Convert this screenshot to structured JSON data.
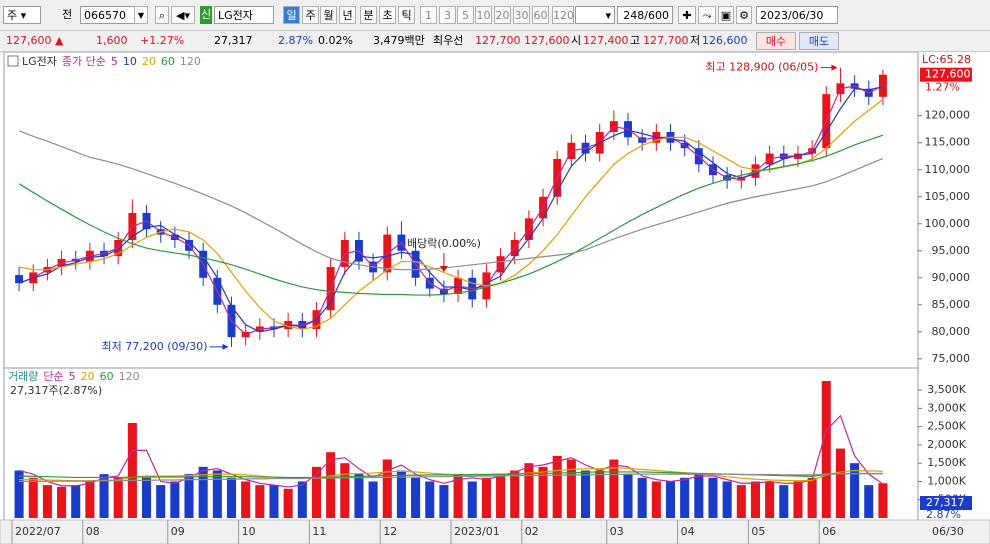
{
  "toolbar": {
    "market": "주",
    "prev": "전",
    "code": "066570",
    "new_badge": "신",
    "name": "LG전자",
    "periods": [
      "일",
      "주",
      "월",
      "년",
      "분",
      "초",
      "틱"
    ],
    "minutes": [
      "1",
      "3",
      "5",
      "10",
      "20",
      "30",
      "60",
      "120"
    ],
    "count": "248",
    "max_count": "/600",
    "date": "2023/06/30"
  },
  "quote": {
    "price": "127,600 ▲",
    "change": "1,600",
    "change_rate": "+1.27%",
    "volume": "27,317",
    "turnover": "2.87%",
    "ratio": "0.02%",
    "amount": "3,479백만",
    "best_label": "최우선",
    "ask": "127,700",
    "bid": "127,600",
    "open_label": "시",
    "open": "127,400",
    "high_label": "고",
    "high": "127,700",
    "low_label": "저",
    "low": "126,600",
    "buy": "매수",
    "sell": "매도"
  },
  "chart_data": {
    "type": "candlestick",
    "title": "LG전자",
    "ma_label": "종가 단순",
    "up_color": "#e8141b",
    "down_color": "#1a3cc8",
    "xlim": [
      -0.5,
      61.5
    ],
    "xticks": [
      {
        "value": 0,
        "label": "2022/07"
      },
      {
        "value": 5,
        "label": "08"
      },
      {
        "value": 11,
        "label": "09"
      },
      {
        "value": 16,
        "label": "10"
      },
      {
        "value": 21,
        "label": "11"
      },
      {
        "value": 26,
        "label": "12"
      },
      {
        "value": 31,
        "label": "2023/01"
      },
      {
        "value": 36,
        "label": "02"
      },
      {
        "value": 42,
        "label": "03"
      },
      {
        "value": 47,
        "label": "04"
      },
      {
        "value": 52,
        "label": "05"
      },
      {
        "value": 57,
        "label": "06"
      }
    ],
    "last_label": "06/30",
    "open": [
      90500,
      89000,
      91000,
      92000,
      93500,
      93000,
      95000,
      94000,
      97000,
      102000,
      99000,
      98000,
      97000,
      95000,
      90000,
      85000,
      79000,
      80000,
      81000,
      80500,
      82000,
      80500,
      84000,
      92000,
      97000,
      93000,
      91000,
      98000,
      95000,
      90000,
      88000,
      87000,
      90000,
      86000,
      91000,
      94000,
      97000,
      101000,
      105000,
      112000,
      115000,
      113000,
      117000,
      119000,
      116000,
      115000,
      117000,
      115000,
      114000,
      111000,
      109000,
      108000,
      108500,
      111000,
      113000,
      112000,
      113000,
      114000,
      124000,
      126000,
      125000,
      123500
    ],
    "high": [
      92000,
      92500,
      93500,
      95000,
      95000,
      96500,
      96500,
      98500,
      104500,
      103500,
      100500,
      99500,
      98500,
      96500,
      91500,
      86500,
      81500,
      82500,
      82500,
      83500,
      83500,
      85500,
      93500,
      98500,
      98500,
      94500,
      99500,
      100500,
      96500,
      91500,
      89500,
      91500,
      91500,
      92500,
      95500,
      98500,
      102500,
      106500,
      113500,
      116500,
      116500,
      118500,
      121000,
      120500,
      117500,
      118500,
      118500,
      116500,
      115500,
      112500,
      110500,
      110000,
      112500,
      114500,
      114500,
      114500,
      115500,
      125500,
      128900,
      127500,
      126500,
      128500
    ],
    "low": [
      87500,
      87500,
      89500,
      90500,
      91500,
      91500,
      92500,
      92500,
      95500,
      97500,
      96500,
      95500,
      93500,
      88500,
      83500,
      77200,
      77500,
      78500,
      79000,
      79000,
      79000,
      79000,
      82500,
      90500,
      91500,
      89500,
      89500,
      93500,
      88500,
      86500,
      85500,
      85500,
      84500,
      84500,
      89500,
      92500,
      95500,
      99500,
      103500,
      110500,
      111500,
      111500,
      115500,
      114500,
      113500,
      113500,
      113500,
      112500,
      109500,
      107500,
      106500,
      106500,
      107000,
      109500,
      110500,
      110500,
      111500,
      112500,
      122500,
      123500,
      122000,
      122000
    ],
    "close": [
      89000,
      91000,
      92000,
      93500,
      93000,
      95000,
      94000,
      97000,
      102000,
      99000,
      98000,
      97000,
      95000,
      90000,
      85000,
      79000,
      80000,
      81000,
      80500,
      82000,
      80500,
      84000,
      92000,
      97000,
      93000,
      91000,
      98000,
      95000,
      90000,
      88000,
      87000,
      90000,
      86000,
      91000,
      94000,
      97000,
      101000,
      105000,
      112000,
      115000,
      113000,
      117000,
      119000,
      116000,
      115000,
      117000,
      115000,
      114000,
      111000,
      109000,
      108000,
      108500,
      111000,
      113000,
      112000,
      113000,
      114000,
      124000,
      126000,
      125000,
      123500,
      127600
    ],
    "ma": [
      {
        "name": "5",
        "color": "#c0289a",
        "values": [
          89000,
          90000,
          91500,
          92750,
          93250,
          94000,
          94500,
          95500,
          99500,
          100500,
          98500,
          97500,
          96000,
          92500,
          87500,
          82000,
          79500,
          80500,
          80750,
          81250,
          81250,
          82250,
          88000,
          94500,
          95000,
          92000,
          94500,
          96500,
          92500,
          89000,
          87500,
          88500,
          88000,
          88500,
          92500,
          95500,
          99000,
          103000,
          108500,
          113500,
          114000,
          115000,
          118000,
          117500,
          115500,
          116000,
          116000,
          114500,
          112500,
          110000,
          108500,
          108250,
          109750,
          112000,
          112500,
          112500,
          113500,
          119000,
          125000,
          125500,
          124250,
          125550
        ]
      },
      {
        "name": "10",
        "color": "#2a36c8",
        "values": [
          89000,
          90000,
          90700,
          92200,
          92800,
          93800,
          94000,
          95300,
          97700,
          99300,
          99700,
          98000,
          96700,
          94000,
          90000,
          84700,
          81300,
          80000,
          80500,
          81200,
          81000,
          82200,
          85500,
          91000,
          94000,
          93700,
          94000,
          94700,
          94300,
          91000,
          88300,
          88300,
          87700,
          89000,
          90300,
          94000,
          97300,
          101000,
          106000,
          110700,
          113300,
          115000,
          116300,
          117300,
          116700,
          116000,
          115700,
          115300,
          113300,
          111300,
          109300,
          108500,
          109200,
          110800,
          112000,
          112700,
          113000,
          117000,
          121300,
          125000,
          124800,
          125400
        ]
      },
      {
        "name": "20",
        "color": "#e8a000",
        "values": [
          92000,
          91500,
          91500,
          92000,
          92500,
          93000,
          93500,
          94500,
          96000,
          97500,
          98500,
          99000,
          98500,
          97000,
          94500,
          91000,
          87500,
          84500,
          82000,
          81000,
          80500,
          81000,
          82500,
          85000,
          87500,
          89500,
          91500,
          93000,
          93000,
          92000,
          91000,
          90000,
          89000,
          88500,
          89000,
          90500,
          92500,
          95000,
          98000,
          101500,
          105000,
          108000,
          111000,
          113000,
          114500,
          115500,
          116000,
          116000,
          115000,
          113500,
          112000,
          110500,
          110000,
          110000,
          110500,
          111000,
          112000,
          114000,
          116500,
          119000,
          121000,
          123000
        ]
      },
      {
        "name": "60",
        "color": "#2a9a3a",
        "values": [
          107400,
          105800,
          104200,
          102700,
          101200,
          99800,
          98500,
          97300,
          96300,
          95500,
          95000,
          94600,
          94200,
          93700,
          93100,
          92400,
          91600,
          90700,
          89800,
          89000,
          88300,
          87800,
          87500,
          87300,
          87100,
          87000,
          86900,
          86900,
          86800,
          86800,
          86900,
          87200,
          87600,
          88300,
          89000,
          89800,
          90700,
          91800,
          93000,
          94300,
          95800,
          97300,
          98800,
          100300,
          101700,
          103000,
          104300,
          105500,
          106600,
          107500,
          108300,
          109000,
          109600,
          110100,
          110600,
          111100,
          111700,
          112500,
          113500,
          114600,
          115500,
          116400
        ]
      },
      {
        "name": "120",
        "color": "#8c8c8c",
        "values": [
          117200,
          116200,
          115300,
          114300,
          113300,
          112300,
          111700,
          111000,
          110200,
          109300,
          108400,
          107500,
          106500,
          105500,
          104400,
          103300,
          102000,
          100600,
          99200,
          97700,
          96200,
          94800,
          93600,
          92900,
          92400,
          92000,
          91700,
          91500,
          91500,
          91600,
          91800,
          92100,
          92400,
          92700,
          93000,
          93300,
          93600,
          93900,
          94200,
          94500,
          95200,
          96200,
          97200,
          98100,
          99000,
          99800,
          100600,
          101400,
          102200,
          103000,
          103800,
          104400,
          105000,
          105500,
          106000,
          106500,
          107000,
          107800,
          108800,
          109900,
          111000,
          112100
        ]
      }
    ],
    "ylim": [
      73300,
      131800
    ],
    "yticks": [
      {
        "value": 75000,
        "label": "75,000"
      },
      {
        "value": 80000,
        "label": "80,000"
      },
      {
        "value": 85000,
        "label": "85,000"
      },
      {
        "value": 90000,
        "label": "90,000"
      },
      {
        "value": 95000,
        "label": "95,000"
      },
      {
        "value": 100000,
        "label": "100,000"
      },
      {
        "value": 105000,
        "label": "105,000"
      },
      {
        "value": 110000,
        "label": "110,000"
      },
      {
        "value": 115000,
        "label": "115,000"
      },
      {
        "value": 120000,
        "label": "120,000"
      }
    ],
    "annotations": {
      "high": "최고 128,900 (06/05)",
      "low": "최저 77,200 (09/30)",
      "ex_dividend": {
        "text": "배당락(0.00%)",
        "x": 30
      }
    },
    "right_labels": {
      "lc": "LC:65.28",
      "price": "127,600",
      "rate": "1.27%"
    },
    "volume": {
      "label": "거래량",
      "ma_label": "단순",
      "summary": "27,317주(2.87%)",
      "right_value": "27,317",
      "right_rate": "2.87%",
      "values": [
        1300000,
        1100000,
        900000,
        850000,
        900000,
        1000000,
        1200000,
        1100000,
        2600000,
        1100000,
        900000,
        1000000,
        1200000,
        1400000,
        1300000,
        1100000,
        1000000,
        900000,
        900000,
        800000,
        1000000,
        1400000,
        1800000,
        1500000,
        1200000,
        1000000,
        1600000,
        1300000,
        1100000,
        1000000,
        900000,
        1200000,
        1000000,
        1100000,
        1200000,
        1300000,
        1500000,
        1400000,
        1700000,
        1600000,
        1300000,
        1300000,
        1600000,
        1200000,
        1100000,
        1000000,
        1000000,
        1100000,
        1200000,
        1100000,
        1000000,
        900000,
        1000000,
        1000000,
        900000,
        1000000,
        1100000,
        3750000,
        1900000,
        1500000,
        900000,
        950000
      ],
      "ma": [
        {
          "name": "5",
          "color": "#c0289a",
          "values": [
            1300000,
            1200000,
            1000000,
            880000,
            880000,
            950000,
            1100000,
            1150000,
            1850000,
            1850000,
            1000000,
            950000,
            1100000,
            1300000,
            1350000,
            1200000,
            1050000,
            950000,
            900000,
            850000,
            900000,
            1200000,
            1600000,
            1650000,
            1350000,
            1100000,
            1300000,
            1450000,
            1200000,
            1050000,
            950000,
            1050000,
            1100000,
            1050000,
            1150000,
            1250000,
            1400000,
            1450000,
            1550000,
            1650000,
            1450000,
            1300000,
            1450000,
            1400000,
            1150000,
            1050000,
            1000000,
            1050000,
            1150000,
            1150000,
            1050000,
            950000,
            950000,
            1000000,
            950000,
            950000,
            1050000,
            2400000,
            2800000,
            1700000,
            1200000,
            930000
          ]
        },
        {
          "name": "20",
          "color": "#e8a000",
          "values": [
            1050000,
            1050000,
            1040000,
            1030000,
            1020000,
            1020000,
            1030000,
            1040000,
            1120000,
            1150000,
            1150000,
            1150000,
            1160000,
            1180000,
            1200000,
            1200000,
            1180000,
            1150000,
            1120000,
            1100000,
            1080000,
            1100000,
            1150000,
            1200000,
            1220000,
            1230000,
            1260000,
            1280000,
            1260000,
            1230000,
            1200000,
            1180000,
            1170000,
            1170000,
            1180000,
            1200000,
            1230000,
            1260000,
            1300000,
            1330000,
            1350000,
            1350000,
            1370000,
            1360000,
            1330000,
            1300000,
            1270000,
            1240000,
            1210000,
            1180000,
            1130000,
            1090000,
            1060000,
            1040000,
            1030000,
            1020000,
            1030000,
            1180000,
            1260000,
            1300000,
            1290000,
            1280000
          ]
        },
        {
          "name": "60",
          "color": "#2a9a3a",
          "values": [
            1150000,
            1140000,
            1130000,
            1120000,
            1110000,
            1110000,
            1110000,
            1110000,
            1120000,
            1120000,
            1120000,
            1120000,
            1120000,
            1130000,
            1130000,
            1130000,
            1130000,
            1120000,
            1120000,
            1110000,
            1110000,
            1110000,
            1120000,
            1130000,
            1140000,
            1150000,
            1160000,
            1170000,
            1170000,
            1180000,
            1180000,
            1180000,
            1190000,
            1190000,
            1200000,
            1200000,
            1210000,
            1220000,
            1230000,
            1240000,
            1250000,
            1260000,
            1260000,
            1260000,
            1260000,
            1250000,
            1240000,
            1230000,
            1220000,
            1210000,
            1200000,
            1190000,
            1180000,
            1170000,
            1160000,
            1150000,
            1140000,
            1190000,
            1210000,
            1220000,
            1220000,
            1220000
          ]
        },
        {
          "name": "120",
          "color": "#8c8c8c",
          "values": [
            1000000,
            1000000,
            1000000,
            1010000,
            1010000,
            1010000,
            1020000,
            1020000,
            1030000,
            1030000,
            1040000,
            1040000,
            1050000,
            1050000,
            1060000,
            1060000,
            1070000,
            1070000,
            1080000,
            1080000,
            1080000,
            1090000,
            1090000,
            1100000,
            1100000,
            1110000,
            1110000,
            1120000,
            1120000,
            1130000,
            1130000,
            1140000,
            1140000,
            1150000,
            1150000,
            1160000,
            1160000,
            1170000,
            1170000,
            1180000,
            1180000,
            1190000,
            1190000,
            1200000,
            1200000,
            1200000,
            1200000,
            1200000,
            1200000,
            1200000,
            1200000,
            1190000,
            1190000,
            1190000,
            1180000,
            1180000,
            1180000,
            1200000,
            1210000,
            1210000,
            1210000,
            1210000
          ]
        }
      ],
      "ylim": [
        0,
        4050000
      ],
      "yticks": [
        {
          "value": 500000,
          "label": "500K"
        },
        {
          "value": 1000000,
          "label": "1,000K"
        },
        {
          "value": 1500000,
          "label": "1,500K"
        },
        {
          "value": 2000000,
          "label": "2,000K"
        },
        {
          "value": 2500000,
          "label": "2,500K"
        },
        {
          "value": 3000000,
          "label": "3,000K"
        },
        {
          "value": 3500000,
          "label": "3,500K"
        }
      ]
    }
  }
}
